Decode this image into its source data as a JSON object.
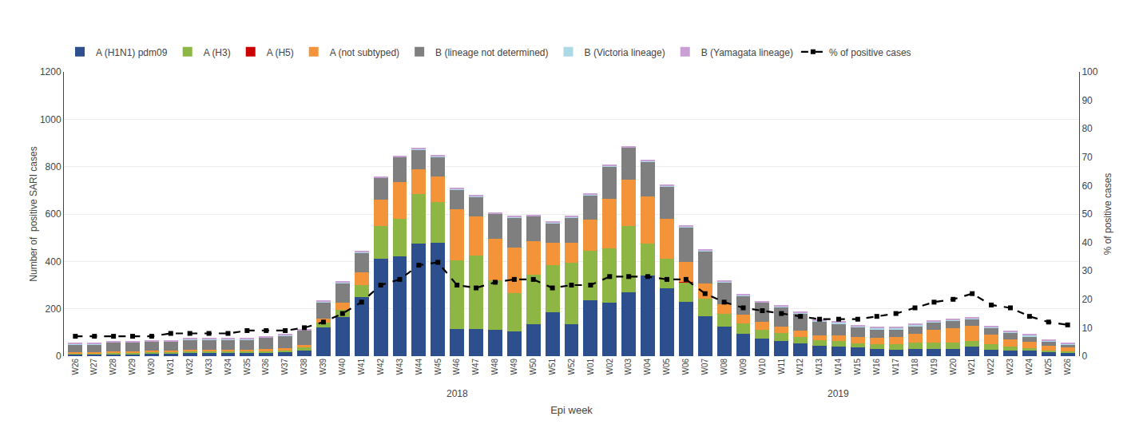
{
  "chart_data": {
    "type": "bar",
    "stacked": true,
    "categories": [
      "W26",
      "W27",
      "W28",
      "W29",
      "W30",
      "W31",
      "W32",
      "W33",
      "W34",
      "W35",
      "W36",
      "W37",
      "W38",
      "W39",
      "W40",
      "W41",
      "W42",
      "W43",
      "W44",
      "W45",
      "W46",
      "W47",
      "W48",
      "W49",
      "W50",
      "W51",
      "W52",
      "W01",
      "W02",
      "W03",
      "W04",
      "W05",
      "W06",
      "W07",
      "W08",
      "W09",
      "W10",
      "W11",
      "W12",
      "W13",
      "W14",
      "W15",
      "W16",
      "W17",
      "W18",
      "W19",
      "W20",
      "W21",
      "W22",
      "W23",
      "W24",
      "W25",
      "W26"
    ],
    "series": [
      {
        "name": "A (H1N1) pdm09",
        "color": "#2E4F8E",
        "values": [
          10,
          10,
          10,
          10,
          12,
          12,
          15,
          15,
          15,
          15,
          15,
          18,
          25,
          120,
          165,
          250,
          410,
          420,
          475,
          480,
          115,
          115,
          110,
          105,
          135,
          185,
          135,
          235,
          225,
          270,
          340,
          285,
          230,
          170,
          125,
          95,
          75,
          65,
          55,
          45,
          42,
          36,
          32,
          28,
          32,
          32,
          32,
          42,
          28,
          22,
          22,
          16,
          12
        ]
      },
      {
        "name": "A (H3)",
        "color": "#8DB645",
        "values": [
          3,
          3,
          3,
          3,
          4,
          4,
          4,
          4,
          5,
          5,
          6,
          6,
          12,
          22,
          32,
          50,
          140,
          160,
          210,
          170,
          290,
          310,
          210,
          160,
          210,
          200,
          260,
          210,
          230,
          280,
          135,
          125,
          82,
          72,
          52,
          42,
          37,
          32,
          27,
          22,
          22,
          17,
          17,
          22,
          27,
          27,
          27,
          22,
          22,
          17,
          12,
          7,
          7
        ]
      },
      {
        "name": "A (H5)",
        "color": "#CC0000",
        "values": [
          0,
          0,
          0,
          0,
          0,
          0,
          0,
          0,
          0,
          0,
          0,
          0,
          0,
          0,
          0,
          0,
          0,
          0,
          0,
          0,
          0,
          0,
          0,
          0,
          0,
          0,
          0,
          0,
          0,
          0,
          0,
          0,
          2,
          0,
          0,
          0,
          0,
          0,
          0,
          0,
          0,
          0,
          0,
          0,
          0,
          0,
          0,
          0,
          0,
          0,
          0,
          0,
          0
        ]
      },
      {
        "name": "A (not subtyped)",
        "color": "#F4943A",
        "values": [
          5,
          5,
          8,
          8,
          8,
          8,
          8,
          8,
          8,
          8,
          10,
          10,
          10,
          15,
          30,
          55,
          110,
          155,
          105,
          110,
          215,
          165,
          175,
          195,
          140,
          95,
          85,
          130,
          210,
          195,
          200,
          170,
          85,
          65,
          42,
          37,
          32,
          27,
          27,
          22,
          22,
          27,
          27,
          32,
          37,
          52,
          58,
          65,
          42,
          32,
          27,
          22,
          17
        ]
      },
      {
        "name": "B (lineage not determined)",
        "color": "#7F7F7F",
        "values": [
          32,
          32,
          37,
          37,
          37,
          37,
          42,
          42,
          42,
          42,
          47,
          52,
          62,
          72,
          82,
          82,
          92,
          105,
          82,
          82,
          82,
          82,
          105,
          125,
          105,
          82,
          105,
          105,
          135,
          135,
          145,
          135,
          145,
          135,
          92,
          82,
          82,
          82,
          72,
          57,
          52,
          42,
          37,
          32,
          32,
          32,
          32,
          27,
          27,
          27,
          22,
          17,
          12
        ]
      },
      {
        "name": "B (Victoria lineage)",
        "color": "#ADD8E6",
        "values": [
          2,
          2,
          2,
          2,
          2,
          2,
          2,
          2,
          2,
          2,
          2,
          2,
          2,
          2,
          2,
          2,
          2,
          2,
          2,
          2,
          3,
          3,
          3,
          3,
          3,
          3,
          3,
          3,
          3,
          3,
          3,
          3,
          3,
          3,
          3,
          3,
          3,
          3,
          3,
          5,
          5,
          5,
          5,
          5,
          5,
          5,
          5,
          5,
          5,
          5,
          5,
          3,
          3
        ]
      },
      {
        "name": "B (Yamagata lineage)",
        "color": "#C8A0D4",
        "values": [
          5,
          5,
          5,
          5,
          5,
          5,
          5,
          5,
          5,
          5,
          5,
          5,
          5,
          5,
          5,
          5,
          5,
          5,
          5,
          5,
          5,
          5,
          5,
          5,
          5,
          5,
          5,
          5,
          5,
          5,
          5,
          5,
          5,
          5,
          5,
          5,
          5,
          5,
          5,
          5,
          5,
          5,
          5,
          5,
          5,
          5,
          5,
          5,
          5,
          5,
          5,
          5,
          5
        ]
      },
      {
        "name": "% of positive cases",
        "type": "line",
        "axis": "y2",
        "color": "#000000",
        "line_style": "dashed",
        "marker": "square",
        "values": [
          7,
          7,
          7,
          7,
          7,
          8,
          8,
          8,
          8,
          9,
          9,
          9,
          10,
          12,
          15,
          19,
          25,
          27,
          32,
          33,
          25,
          24,
          26,
          27,
          27,
          24,
          25,
          25,
          28,
          28,
          28,
          27,
          27,
          22,
          19,
          17,
          16,
          15,
          14,
          13,
          13,
          13,
          14,
          15,
          17,
          19,
          20,
          22,
          18,
          17,
          14,
          12,
          11
        ]
      }
    ],
    "xlabel": "Epi week",
    "ylabel": "Number of  positive SARI cases",
    "y2label": "% of positive cases",
    "ylim": [
      0,
      1200
    ],
    "yticks": [
      0,
      200,
      400,
      600,
      800,
      1000,
      1200
    ],
    "y2lim": [
      0,
      100
    ],
    "y2ticks": [
      0,
      10,
      20,
      30,
      40,
      50,
      60,
      70,
      80,
      90,
      100
    ],
    "annotations": [
      "2018",
      "2019"
    ],
    "grid": true,
    "legend": "top"
  }
}
